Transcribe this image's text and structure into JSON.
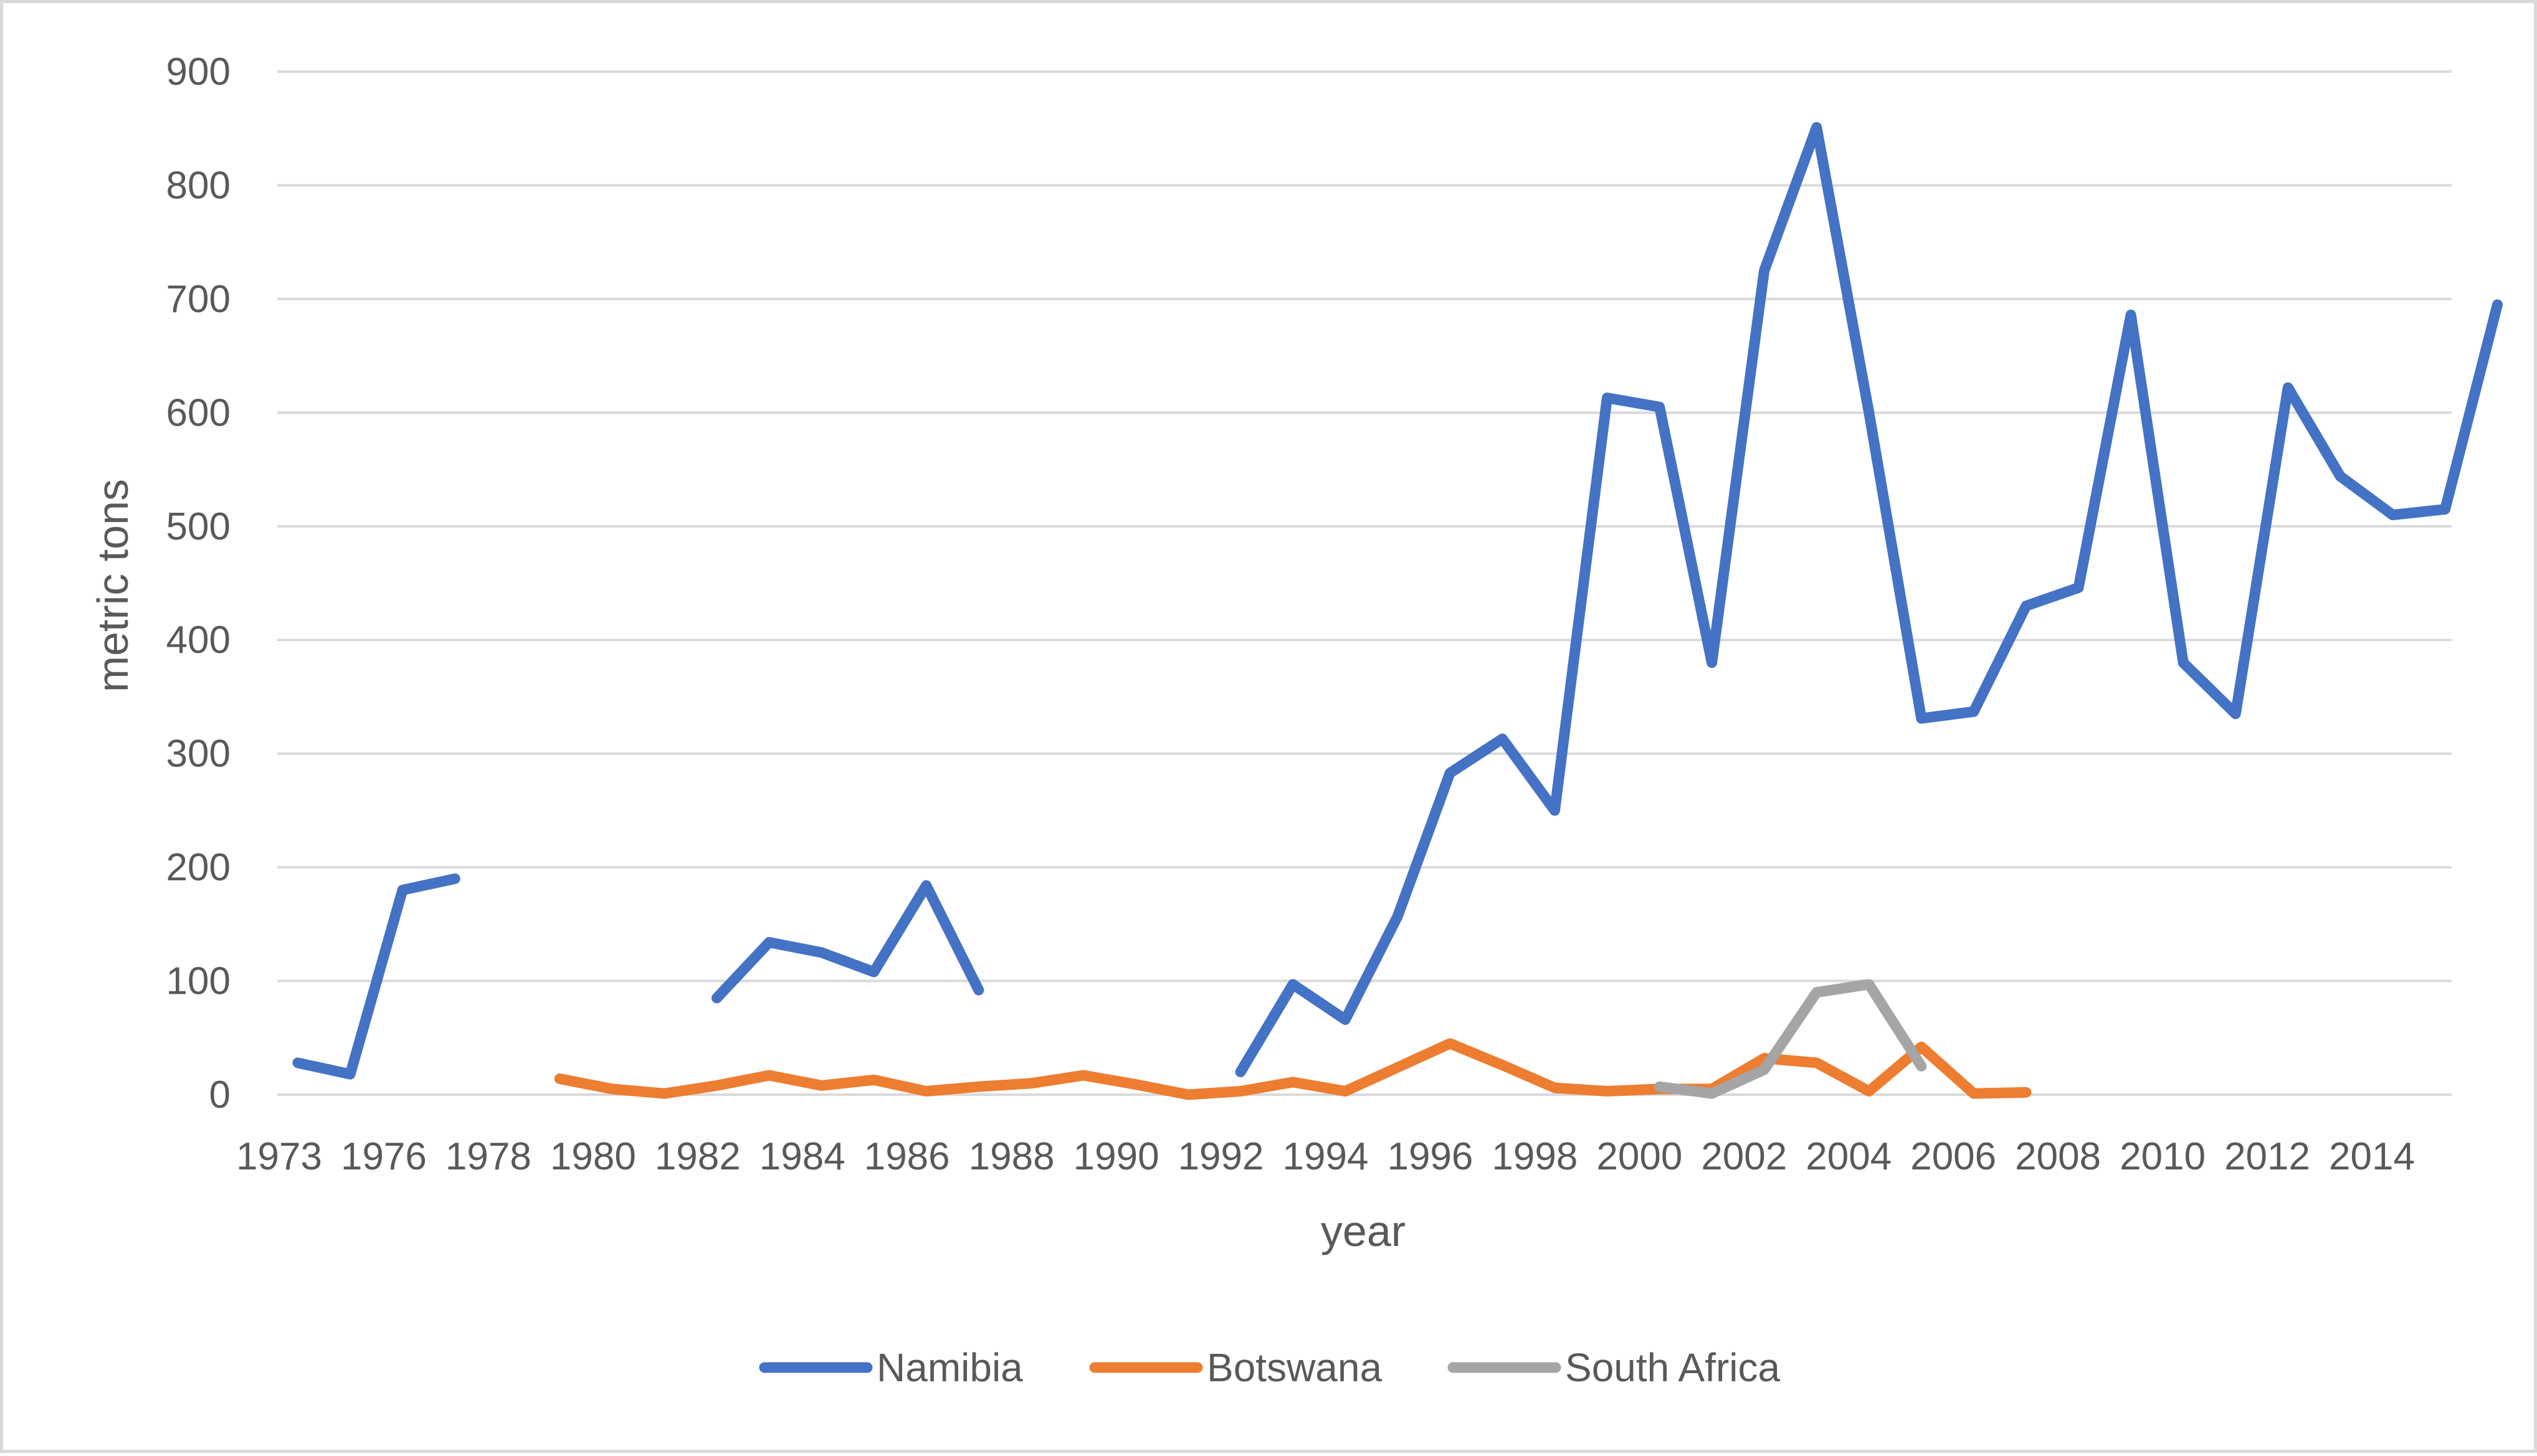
{
  "chart_data": {
    "type": "line",
    "title": "",
    "xlabel": "year",
    "ylabel": "metric tons",
    "ylim": [
      0,
      900
    ],
    "yticks": [
      0,
      100,
      200,
      300,
      400,
      500,
      600,
      700,
      800,
      900
    ],
    "xlim": [
      1973,
      2015
    ],
    "xtick_labels": [
      "1973",
      "1976",
      "1978",
      "1980",
      "1982",
      "1984",
      "1986",
      "1988",
      "1990",
      "1992",
      "1994",
      "1996",
      "1998",
      "2000",
      "2002",
      "2004",
      "2006",
      "2008",
      "2010",
      "2012",
      "2014"
    ],
    "x": [
      1973,
      1974,
      1975,
      1976,
      1977,
      1978,
      1979,
      1980,
      1981,
      1982,
      1983,
      1984,
      1985,
      1986,
      1987,
      1988,
      1989,
      1990,
      1991,
      1992,
      1993,
      1994,
      1995,
      1996,
      1997,
      1998,
      1999,
      2000,
      2001,
      2002,
      2003,
      2004,
      2005,
      2006,
      2007,
      2008,
      2009,
      2010,
      2011,
      2012,
      2013,
      2014,
      2015
    ],
    "grid": true,
    "legend_position": "bottom",
    "series": [
      {
        "name": "Namibia",
        "color": "#4472c4",
        "values": [
          28,
          18,
          180,
          190,
          null,
          null,
          null,
          null,
          85,
          134,
          125,
          108,
          184,
          92,
          null,
          null,
          null,
          null,
          20,
          97,
          66,
          157,
          283,
          313,
          250,
          613,
          605,
          380,
          725,
          851,
          600,
          331,
          337,
          430,
          446,
          686,
          380,
          335,
          622,
          544,
          510,
          515,
          695
        ]
      },
      {
        "name": "Botswana",
        "color": "#ed7d31",
        "values": [
          null,
          null,
          null,
          null,
          null,
          14,
          5,
          1,
          8,
          17,
          8,
          13,
          3,
          7,
          10,
          17,
          9,
          0,
          3,
          11,
          3,
          24,
          45,
          26,
          6,
          3,
          5,
          5,
          32,
          28,
          3,
          42,
          1,
          2,
          null,
          null,
          null,
          null,
          null,
          null,
          null,
          null,
          null
        ]
      },
      {
        "name": "South Africa",
        "color": "#a5a5a5",
        "values": [
          null,
          null,
          null,
          null,
          null,
          null,
          null,
          null,
          null,
          null,
          null,
          null,
          null,
          null,
          null,
          null,
          null,
          null,
          null,
          null,
          null,
          null,
          null,
          null,
          null,
          null,
          7,
          1,
          22,
          90,
          97,
          25,
          null,
          null,
          null,
          null,
          null,
          null,
          null,
          null,
          null,
          null,
          null
        ]
      }
    ]
  }
}
